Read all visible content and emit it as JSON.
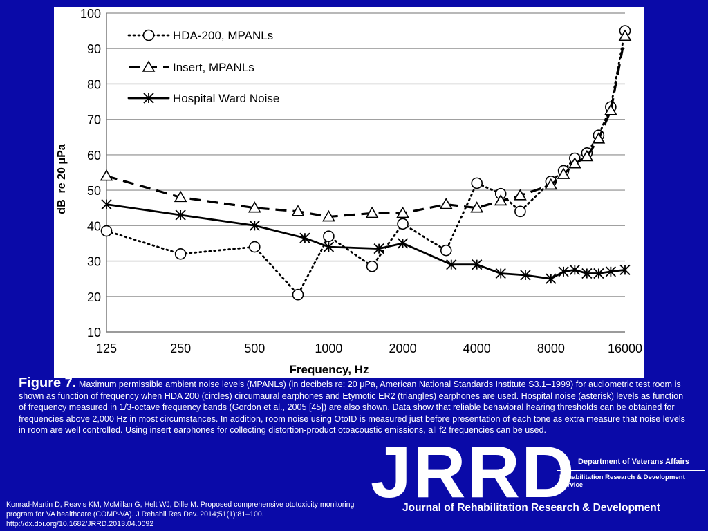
{
  "chart_data": {
    "type": "line",
    "xlabel": "Frequency, Hz",
    "ylabel": "dB  re 20 μPa",
    "x_scale": "log",
    "xlim": [
      125,
      16000
    ],
    "ylim": [
      10,
      100
    ],
    "yticks": [
      10,
      20,
      30,
      40,
      50,
      60,
      70,
      80,
      90,
      100
    ],
    "xticks": [
      125,
      250,
      500,
      1000,
      2000,
      4000,
      8000,
      16000
    ],
    "grid": "horizontal",
    "legend_position": "top-left",
    "series": [
      {
        "name": "HDA-200, MPANLs",
        "style": "dotted",
        "marker": "circle",
        "x": [
          125,
          250,
          500,
          750,
          1000,
          1500,
          2000,
          3000,
          4000,
          5000,
          6000,
          8000,
          9000,
          10000,
          11200,
          12500,
          14000,
          16000
        ],
        "y": [
          38.5,
          32,
          34,
          20.5,
          37,
          28.5,
          40.5,
          33,
          52,
          49,
          44,
          52.5,
          55.5,
          59,
          60.5,
          65.5,
          73.5,
          95
        ]
      },
      {
        "name": "Insert, MPANLs",
        "style": "dashed",
        "marker": "triangle",
        "x": [
          125,
          250,
          500,
          750,
          1000,
          1500,
          2000,
          3000,
          4000,
          5000,
          6000,
          8000,
          9000,
          10000,
          11200,
          12500,
          14000,
          16000
        ],
        "y": [
          54,
          48,
          45,
          44,
          42.5,
          43.5,
          43.5,
          46,
          45,
          47,
          48.5,
          51.5,
          54.5,
          57.5,
          59.5,
          64.5,
          72.5,
          93.5
        ]
      },
      {
        "name": "Hospital Ward Noise",
        "style": "solid",
        "marker": "asterisk",
        "x": [
          125,
          250,
          500,
          800,
          1000,
          1600,
          2000,
          3150,
          4000,
          5000,
          6300,
          8000,
          9000,
          10000,
          11200,
          12500,
          14000,
          16000
        ],
        "y": [
          46,
          43,
          40,
          36.5,
          34,
          33.5,
          35,
          29,
          29,
          26.5,
          26,
          25,
          27,
          27.5,
          26.5,
          26.5,
          27,
          27.5
        ]
      }
    ]
  },
  "caption": {
    "label": "Figure 7.",
    "text": " Maximum permissible ambient noise levels (MPANLs) (in decibels re: 20 μPa, American National Standards Institute S3.1–1999) for audiometric test room is shown as function of frequency when HDA 200 (circles) circumaural earphones and Etymotic ER2 (triangles) earphones are used. Hospital noise (asterisk) levels as function of frequency measured in 1/3-octave frequency bands (Gordon et al., 2005 [45]) are also shown. Data show that reliable behavioral hearing thresholds can be obtained for frequencies above 2,000 Hz in most circumstances. In addition, room noise using OtoID is measured just before presentation of each tone as extra measure that noise levels in room are well controlled. Using insert earphones for collecting distortion-product otoacoustic emissions, all f2 frequencies can be used."
  },
  "citation": "Konrad-Martin D, Reavis KM, McMillan G, Helt WJ, Dille M. Proposed comprehensive ototoxicity monitoring program for VA healthcare (COMP-VA). J Rehabil Res Dev. 2014;51(1):81–100. http://dx.doi.org/10.1682/JRRD.2013.04.0092",
  "branding": {
    "logo": "JRRD",
    "department": "Department of Veterans Affairs",
    "service": "Rehabilitation Research & Development Service",
    "journal": "Journal of Rehabilitation Research & Development"
  },
  "colors": {
    "background": "#0a0aa8",
    "chart_background": "#ffffff",
    "series": "#000000",
    "grid": "#a0a0a0"
  }
}
